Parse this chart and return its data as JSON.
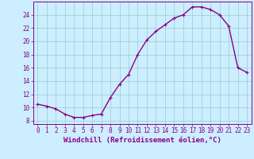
{
  "hours": [
    0,
    1,
    2,
    3,
    4,
    5,
    6,
    7,
    8,
    9,
    10,
    11,
    12,
    13,
    14,
    15,
    16,
    17,
    18,
    19,
    20,
    21,
    22,
    23
  ],
  "values": [
    10.5,
    10.2,
    9.8,
    9.0,
    8.5,
    8.5,
    8.8,
    9.0,
    11.5,
    13.5,
    15.0,
    18.0,
    20.2,
    21.5,
    22.5,
    23.5,
    24.0,
    25.2,
    25.2,
    24.8,
    24.0,
    22.3,
    16.0,
    15.3
  ],
  "xlim": [
    -0.5,
    23.5
  ],
  "ylim": [
    7.5,
    26.0
  ],
  "yticks": [
    8,
    10,
    12,
    14,
    16,
    18,
    20,
    22,
    24
  ],
  "xticks": [
    0,
    1,
    2,
    3,
    4,
    5,
    6,
    7,
    8,
    9,
    10,
    11,
    12,
    13,
    14,
    15,
    16,
    17,
    18,
    19,
    20,
    21,
    22,
    23
  ],
  "line_color": "#880088",
  "marker": "+",
  "bg_color": "#cceeff",
  "grid_color": "#99cccc",
  "xlabel": "Windchill (Refroidissement éolien,°C)",
  "xlabel_fontsize": 6.5,
  "tick_fontsize": 5.5,
  "line_width": 1.0,
  "marker_size": 3,
  "marker_edge_width": 0.8
}
